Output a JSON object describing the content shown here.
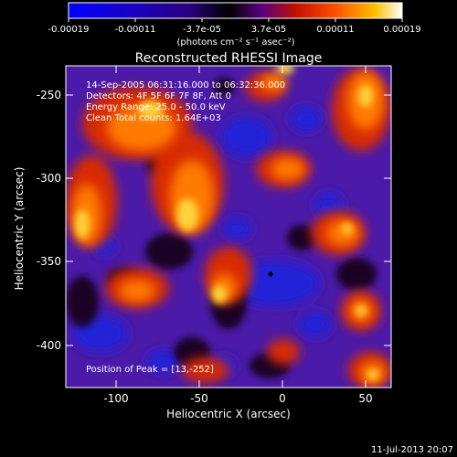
{
  "colorbar": {
    "tick_labels": [
      "-0.00019",
      "-0.00011",
      "-3.7e-05",
      "3.7e-05",
      "0.00011",
      "0.00019"
    ],
    "unit_label": "(photons cm⁻² s⁻¹ asec⁻²)",
    "colors": [
      "#0000ff",
      "#1a00c8",
      "#3a00a0",
      "#000000",
      "#5a0080",
      "#c01000",
      "#ff5000",
      "#ffc000",
      "#ffffff"
    ]
  },
  "plot": {
    "title": "Reconstructed RHESSI Image",
    "xlabel": "Heliocentric X (arcsec)",
    "ylabel": "Heliocentric Y (arcsec)",
    "x_ticks": [
      "-100",
      "-50",
      "0",
      "50"
    ],
    "y_ticks": [
      "-250",
      "-300",
      "-350",
      "-400"
    ]
  },
  "annotations": {
    "line1": "14-Sep-2005 06:31:16.000 to 06:32:36.000",
    "line2": "Detectors: 4F 5F 6F 7F 8F, Att 0",
    "line3": "Energy Range: 25.0 - 50.0 keV",
    "line4": "Clean     Total counts: 1.64E+03",
    "peak": "Position of Peak = [13,-252]"
  },
  "footer": {
    "timestamp": "11-Jul-2013 20:07"
  },
  "style": {
    "background": "#000000",
    "purple": "#4b1aa8",
    "blue": "#2a2ad8",
    "red": "#d82a00",
    "orange": "#ff7a00",
    "yellow": "#ffd23a"
  }
}
